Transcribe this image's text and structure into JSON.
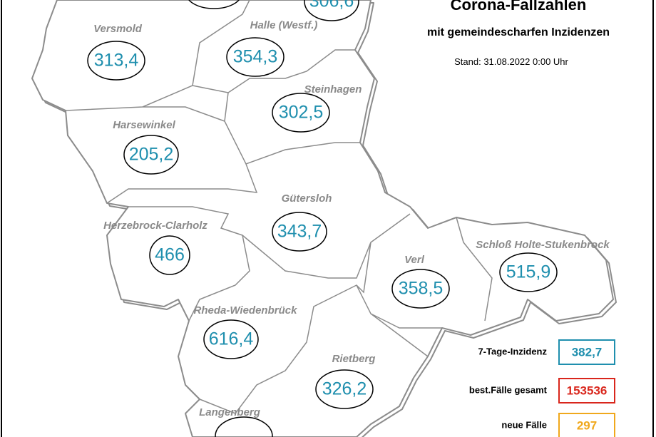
{
  "header": {
    "title": "Corona-Fallzahlen",
    "subtitle": "mit gemeindescharfen Inzidenzen",
    "stand": "Stand: 31.08.2022 0:00 Uhr"
  },
  "regions": [
    {
      "name": "Versmold",
      "value": "313,4"
    },
    {
      "name": "Halle (Westf.)",
      "value": "354,3"
    },
    {
      "name": "Steinhagen",
      "value": "302,5"
    },
    {
      "name": "Harsewinkel",
      "value": "205,2"
    },
    {
      "name": "Gütersloh",
      "value": "343,7"
    },
    {
      "name": "Herzebrock-Clarholz",
      "value": "466"
    },
    {
      "name": "Verl",
      "value": "358,5"
    },
    {
      "name": "Schloß Holte-Stukenbrock",
      "value": "515,9"
    },
    {
      "name": "Rheda-Wiedenbrück",
      "value": "616,4"
    },
    {
      "name": "Rietberg",
      "value": "326,2"
    },
    {
      "name": "Langenberg"
    }
  ],
  "cropped_value": "306,6",
  "legend": [
    {
      "label": "7-Tage-Inzidenz",
      "value": "382,7"
    },
    {
      "label": "best.Fälle gesamt",
      "value": "153536"
    },
    {
      "label": "neue Fälle",
      "value": "297"
    }
  ]
}
